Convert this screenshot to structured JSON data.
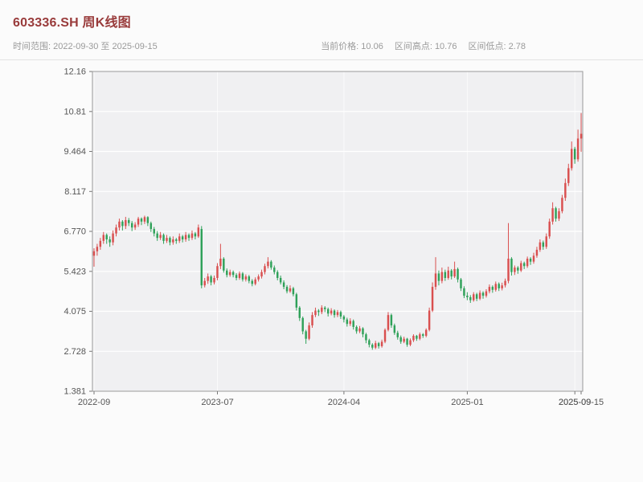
{
  "header": {
    "title": "603336.SH 周K线图",
    "time_range": "时间范围: 2022-09-30 至 2025-09-15",
    "stats": {
      "current": "当前价格: 10.06",
      "high": "区间高点: 10.76",
      "low": "区间低点: 2.78"
    },
    "title_color": "#993b3b"
  },
  "chart_data": {
    "type": "candlestick",
    "title": "603336.SH 周K线图",
    "interval": "weekly",
    "date_start": "2022-09-30",
    "date_end": "2025-09-15",
    "current_price": 10.06,
    "range_high": 10.76,
    "range_low": 2.78,
    "ylim": [
      1.381,
      12.16
    ],
    "yticks": [
      "12.16",
      "10.81",
      "9.464",
      "8.117",
      "6.770",
      "5.423",
      "4.075",
      "2.728",
      "1.381"
    ],
    "xticks": [
      {
        "index": 0,
        "label": "2022-09",
        "grid": true
      },
      {
        "index": 39,
        "label": "2023-07",
        "grid": true
      },
      {
        "index": 79,
        "label": "2024-04",
        "grid": true
      },
      {
        "index": 118,
        "label": "2025-01",
        "grid": true
      },
      {
        "index": 152,
        "label": "2025-09",
        "grid": true
      },
      {
        "index": 154,
        "label": "2025-09-15",
        "grid": false
      }
    ],
    "grid": true,
    "legend": "none",
    "colors": {
      "up": "#d94f4f",
      "down": "#2fa159",
      "plot_bg": "#f0f0f2",
      "grid": "#ffffff",
      "border": "#999999",
      "tick_text": "#555555"
    },
    "ohlc_format": [
      "open",
      "high",
      "low",
      "close"
    ],
    "ohlc": [
      [
        5.95,
        6.2,
        5.58,
        6.1
      ],
      [
        6.1,
        6.35,
        5.95,
        6.25
      ],
      [
        6.25,
        6.55,
        6.15,
        6.45
      ],
      [
        6.45,
        6.75,
        6.35,
        6.65
      ],
      [
        6.65,
        6.7,
        6.35,
        6.5
      ],
      [
        6.5,
        6.6,
        6.25,
        6.4
      ],
      [
        6.4,
        6.8,
        6.3,
        6.7
      ],
      [
        6.7,
        7.0,
        6.6,
        6.9
      ],
      [
        6.9,
        7.2,
        6.8,
        7.1
      ],
      [
        7.1,
        7.15,
        6.8,
        6.95
      ],
      [
        6.95,
        7.26,
        6.85,
        7.15
      ],
      [
        7.15,
        7.22,
        6.95,
        7.05
      ],
      [
        7.05,
        7.12,
        6.78,
        6.9
      ],
      [
        6.9,
        7.08,
        6.82,
        7.0
      ],
      [
        7.0,
        7.26,
        6.92,
        7.2
      ],
      [
        7.2,
        7.24,
        6.98,
        7.1
      ],
      [
        7.1,
        7.3,
        7.02,
        7.25
      ],
      [
        7.25,
        7.28,
        6.95,
        7.05
      ],
      [
        7.05,
        7.1,
        6.75,
        6.85
      ],
      [
        6.85,
        6.92,
        6.6,
        6.7
      ],
      [
        6.7,
        6.78,
        6.45,
        6.55
      ],
      [
        6.55,
        6.75,
        6.48,
        6.65
      ],
      [
        6.65,
        6.7,
        6.35,
        6.45
      ],
      [
        6.45,
        6.65,
        6.38,
        6.55
      ],
      [
        6.55,
        6.6,
        6.3,
        6.4
      ],
      [
        6.4,
        6.6,
        6.32,
        6.5
      ],
      [
        6.5,
        6.55,
        6.35,
        6.45
      ],
      [
        6.45,
        6.7,
        6.38,
        6.6
      ],
      [
        6.6,
        6.65,
        6.4,
        6.5
      ],
      [
        6.5,
        6.75,
        6.42,
        6.65
      ],
      [
        6.65,
        6.7,
        6.45,
        6.55
      ],
      [
        6.55,
        6.8,
        6.48,
        6.7
      ],
      [
        6.7,
        6.75,
        6.5,
        6.6
      ],
      [
        6.6,
        7.0,
        6.55,
        6.9
      ],
      [
        6.85,
        6.95,
        4.85,
        4.95
      ],
      [
        4.95,
        5.2,
        4.88,
        5.1
      ],
      [
        5.1,
        5.35,
        5.0,
        5.25
      ],
      [
        5.25,
        5.3,
        4.95,
        5.05
      ],
      [
        5.05,
        5.28,
        4.98,
        5.2
      ],
      [
        5.2,
        5.7,
        5.12,
        5.6
      ],
      [
        5.6,
        6.35,
        5.5,
        5.85
      ],
      [
        5.85,
        5.9,
        5.38,
        5.45
      ],
      [
        5.45,
        5.52,
        5.22,
        5.3
      ],
      [
        5.3,
        5.48,
        5.24,
        5.4
      ],
      [
        5.4,
        5.45,
        5.22,
        5.3
      ],
      [
        5.3,
        5.36,
        5.12,
        5.2
      ],
      [
        5.2,
        5.42,
        5.14,
        5.35
      ],
      [
        5.35,
        5.4,
        5.08,
        5.15
      ],
      [
        5.15,
        5.32,
        5.08,
        5.25
      ],
      [
        5.25,
        5.3,
        5.02,
        5.1
      ],
      [
        5.1,
        5.16,
        4.92,
        5.0
      ],
      [
        5.0,
        5.22,
        4.95,
        5.15
      ],
      [
        5.15,
        5.32,
        5.08,
        5.25
      ],
      [
        5.25,
        5.48,
        5.18,
        5.4
      ],
      [
        5.4,
        5.68,
        5.32,
        5.6
      ],
      [
        5.6,
        5.9,
        5.52,
        5.75
      ],
      [
        5.75,
        5.8,
        5.48,
        5.55
      ],
      [
        5.55,
        5.62,
        5.32,
        5.4
      ],
      [
        5.4,
        5.46,
        5.12,
        5.2
      ],
      [
        5.2,
        5.28,
        4.98,
        5.05
      ],
      [
        5.05,
        5.12,
        4.82,
        4.9
      ],
      [
        4.9,
        4.96,
        4.68,
        4.75
      ],
      [
        4.75,
        4.95,
        4.7,
        4.85
      ],
      [
        4.85,
        4.9,
        4.58,
        4.65
      ],
      [
        4.65,
        4.7,
        4.1,
        4.2
      ],
      [
        4.2,
        4.25,
        3.75,
        3.85
      ],
      [
        3.85,
        3.9,
        3.3,
        3.4
      ],
      [
        3.4,
        3.45,
        2.98,
        3.15
      ],
      [
        3.15,
        3.7,
        3.1,
        3.6
      ],
      [
        3.6,
        4.05,
        3.52,
        3.95
      ],
      [
        3.95,
        4.2,
        3.88,
        4.1
      ],
      [
        4.1,
        4.15,
        3.92,
        4.05
      ],
      [
        4.05,
        4.28,
        3.98,
        4.2
      ],
      [
        4.2,
        4.25,
        4.05,
        4.15
      ],
      [
        4.15,
        4.2,
        3.9,
        4.0
      ],
      [
        4.0,
        4.18,
        3.94,
        4.1
      ],
      [
        4.1,
        4.14,
        3.86,
        3.95
      ],
      [
        3.95,
        4.12,
        3.88,
        4.05
      ],
      [
        4.05,
        4.1,
        3.82,
        3.9
      ],
      [
        3.9,
        3.95,
        3.7,
        3.8
      ],
      [
        3.8,
        3.86,
        3.56,
        3.65
      ],
      [
        3.65,
        3.84,
        3.58,
        3.75
      ],
      [
        3.75,
        3.8,
        3.46,
        3.55
      ],
      [
        3.55,
        3.6,
        3.32,
        3.4
      ],
      [
        3.4,
        3.58,
        3.34,
        3.5
      ],
      [
        3.5,
        3.54,
        3.2,
        3.3
      ],
      [
        3.3,
        3.35,
        3.0,
        3.1
      ],
      [
        3.1,
        3.15,
        2.86,
        2.95
      ],
      [
        2.95,
        3.0,
        2.78,
        2.85
      ],
      [
        2.85,
        3.08,
        2.8,
        3.0
      ],
      [
        3.0,
        3.04,
        2.82,
        2.9
      ],
      [
        2.9,
        3.12,
        2.85,
        3.05
      ],
      [
        3.05,
        3.5,
        3.0,
        3.45
      ],
      [
        3.45,
        4.05,
        3.4,
        3.95
      ],
      [
        3.95,
        4.0,
        3.52,
        3.6
      ],
      [
        3.6,
        3.66,
        3.28,
        3.35
      ],
      [
        3.35,
        3.42,
        3.12,
        3.2
      ],
      [
        3.2,
        3.26,
        2.98,
        3.05
      ],
      [
        3.05,
        3.22,
        3.0,
        3.15
      ],
      [
        3.15,
        3.18,
        2.88,
        2.95
      ],
      [
        2.95,
        3.16,
        2.9,
        3.1
      ],
      [
        3.1,
        3.3,
        3.04,
        3.25
      ],
      [
        3.25,
        3.28,
        3.08,
        3.15
      ],
      [
        3.15,
        3.36,
        3.1,
        3.3
      ],
      [
        3.3,
        3.34,
        3.18,
        3.25
      ],
      [
        3.25,
        3.5,
        3.2,
        3.45
      ],
      [
        3.45,
        4.2,
        3.4,
        4.1
      ],
      [
        4.1,
        5.05,
        4.05,
        4.9
      ],
      [
        4.9,
        5.9,
        4.8,
        5.35
      ],
      [
        5.35,
        5.45,
        4.95,
        5.1
      ],
      [
        5.1,
        5.55,
        5.02,
        5.4
      ],
      [
        5.4,
        5.48,
        5.1,
        5.2
      ],
      [
        5.2,
        5.58,
        5.14,
        5.45
      ],
      [
        5.45,
        5.5,
        5.15,
        5.25
      ],
      [
        5.25,
        5.75,
        5.2,
        5.5
      ],
      [
        5.5,
        5.55,
        5.05,
        5.15
      ],
      [
        5.15,
        5.2,
        4.76,
        4.85
      ],
      [
        4.85,
        4.92,
        4.52,
        4.6
      ],
      [
        4.6,
        4.72,
        4.45,
        4.55
      ],
      [
        4.55,
        4.62,
        4.36,
        4.45
      ],
      [
        4.45,
        4.72,
        4.4,
        4.65
      ],
      [
        4.65,
        4.7,
        4.42,
        4.5
      ],
      [
        4.5,
        4.78,
        4.45,
        4.7
      ],
      [
        4.7,
        4.75,
        4.5,
        4.6
      ],
      [
        4.6,
        4.82,
        4.54,
        4.75
      ],
      [
        4.75,
        4.98,
        4.68,
        4.9
      ],
      [
        4.9,
        4.95,
        4.7,
        4.8
      ],
      [
        4.8,
        5.08,
        4.74,
        5.0
      ],
      [
        5.0,
        5.05,
        4.76,
        4.85
      ],
      [
        4.85,
        5.04,
        4.78,
        4.95
      ],
      [
        4.95,
        5.18,
        4.88,
        5.1
      ],
      [
        5.1,
        7.05,
        5.02,
        5.85
      ],
      [
        5.85,
        5.9,
        5.28,
        5.4
      ],
      [
        5.4,
        5.62,
        5.3,
        5.55
      ],
      [
        5.55,
        5.6,
        5.34,
        5.45
      ],
      [
        5.45,
        5.78,
        5.4,
        5.7
      ],
      [
        5.7,
        5.75,
        5.5,
        5.6
      ],
      [
        5.6,
        5.92,
        5.54,
        5.85
      ],
      [
        5.85,
        5.9,
        5.64,
        5.75
      ],
      [
        5.75,
        6.05,
        5.68,
        5.95
      ],
      [
        5.95,
        6.25,
        5.88,
        6.15
      ],
      [
        6.15,
        6.5,
        6.08,
        6.4
      ],
      [
        6.4,
        6.46,
        6.15,
        6.25
      ],
      [
        6.25,
        6.7,
        6.18,
        6.6
      ],
      [
        6.6,
        7.2,
        6.52,
        7.1
      ],
      [
        7.1,
        7.75,
        7.0,
        7.55
      ],
      [
        7.55,
        7.6,
        7.1,
        7.2
      ],
      [
        7.2,
        7.55,
        7.12,
        7.45
      ],
      [
        7.45,
        8.0,
        7.38,
        7.9
      ],
      [
        7.9,
        8.55,
        7.8,
        8.4
      ],
      [
        8.4,
        9.05,
        8.3,
        8.9
      ],
      [
        8.9,
        9.8,
        8.82,
        9.55
      ],
      [
        9.55,
        9.62,
        9.05,
        9.2
      ],
      [
        9.2,
        10.2,
        9.12,
        9.9
      ],
      [
        9.9,
        10.76,
        9.45,
        10.06
      ]
    ]
  }
}
